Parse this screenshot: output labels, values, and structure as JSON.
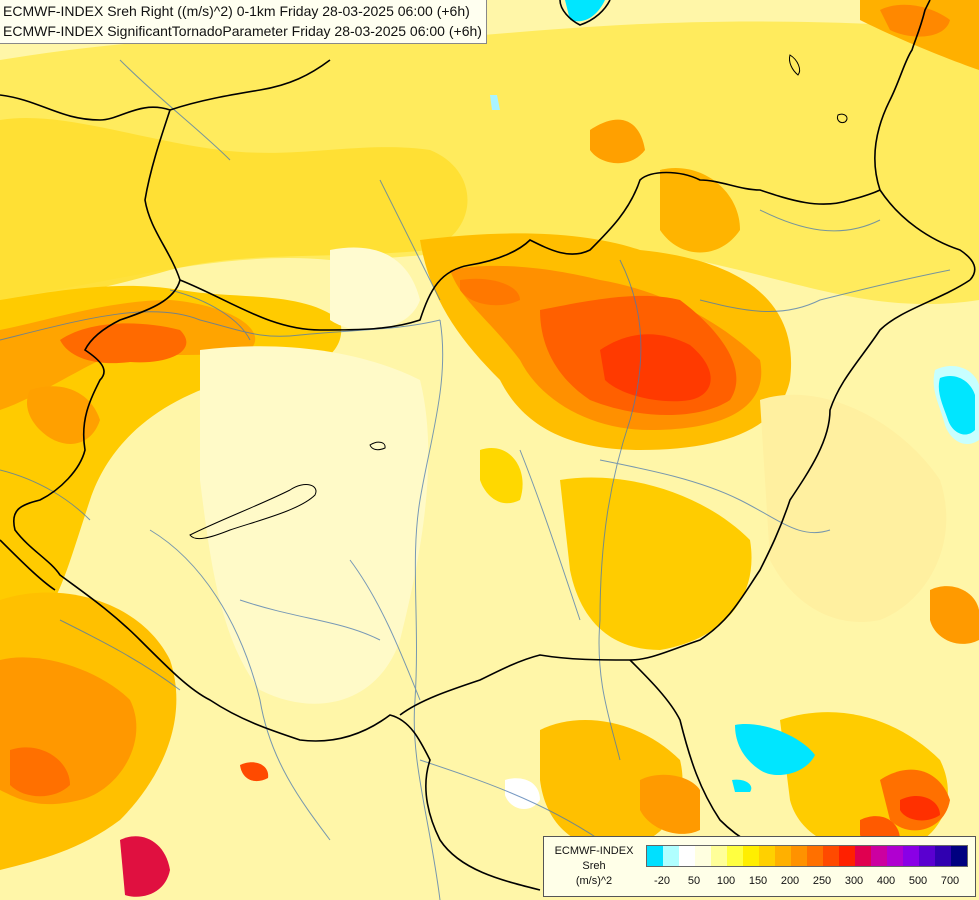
{
  "title": {
    "line1": "ECMWF-INDEX Sreh Right ((m/s)^2) 0-1km Friday 28-03-2025 06:00 (+6h)",
    "line2": "ECMWF-INDEX SignificantTornadoParameter Friday 28-03-2025 06:00 (+6h)"
  },
  "legend": {
    "line1": "ECMWF-INDEX",
    "line2": "Sreh",
    "line3": "(m/s)^2",
    "colors": [
      "#00e0ff",
      "#b0ffff",
      "#ffffff",
      "#ffffe0",
      "#ffff99",
      "#ffff40",
      "#ffee00",
      "#ffd000",
      "#ffb000",
      "#ff9200",
      "#ff7000",
      "#ff4a00",
      "#ff2000",
      "#e00050",
      "#cc00a0",
      "#b000d0",
      "#8a00e6",
      "#5a00d0",
      "#3000b0",
      "#000080"
    ],
    "ticks": [
      "-20",
      "50",
      "100",
      "150",
      "200",
      "250",
      "300",
      "400",
      "500",
      "700"
    ]
  }
}
